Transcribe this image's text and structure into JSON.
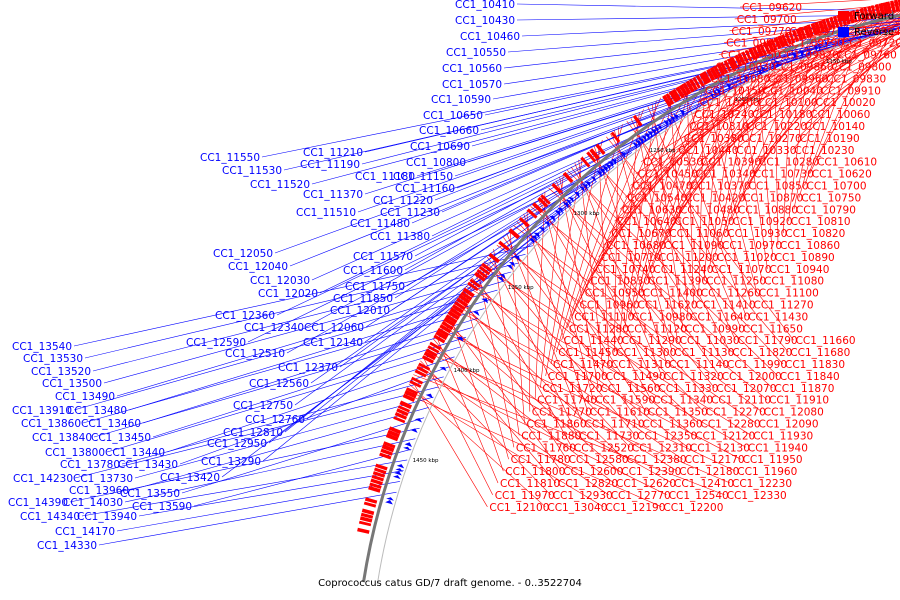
{
  "caption": "Coprococcus catus GD/7 draft genome. - 0..3522704",
  "legend": [
    {
      "label": "Forward",
      "color": "#ff0000"
    },
    {
      "label": "Reverse",
      "color": "#0000ff"
    }
  ],
  "colors": {
    "forward": "#ff0000",
    "reverse": "#0000ff",
    "backbone": "#777777"
  },
  "ticks": [
    "1050 kbp",
    "1100 kbp",
    "1150 kbp",
    "1200 kbp",
    "1250 kbp",
    "1300 kbp",
    "1350 kbp",
    "1400 kbp",
    "1450 kbp"
  ],
  "forward_labels": [
    "CC1_09620",
    "CC1_09700",
    "CC1_09770",
    "CC1_09710",
    "CC1_09640",
    "CC1_09850",
    "CC1_09790",
    "CC1_09720",
    "CC1_09950",
    "CC1_09820",
    "CC1_09760",
    "CC1_10030",
    "CC1_09860",
    "CC1_09800",
    "CC1_10080",
    "CC1_09960",
    "CC1_09830",
    "CC1_10150",
    "CC1_10040",
    "CC1_09910",
    "CC1_10200",
    "CC1_10100",
    "CC1_10020",
    "CC1_10240",
    "CC1_10180",
    "CC1_10060",
    "CC1_10310",
    "CC1_10220",
    "CC1_10140",
    "CC1_10380",
    "CC1_10270",
    "CC1_10190",
    "CC1_10440",
    "CC1_10330",
    "CC1_10230",
    "CC1_10530",
    "CC1_10390",
    "CC1_10280",
    "CC1_10610",
    "CC1_10450",
    "CC1_10340",
    "CC1_10730",
    "CC1_10620",
    "CC1_10470",
    "CC1_10370",
    "CC1_10850",
    "CC1_10700",
    "CC1_10540",
    "CC1_10420",
    "CC1_10870",
    "CC1_10750",
    "CC1_10630",
    "CC1_10480",
    "CC1_10880",
    "CC1_10790",
    "CC1_10640",
    "CC1_11050",
    "CC1_10920",
    "CC1_10810",
    "CC1_10670",
    "CC1_11060",
    "CC1_10930",
    "CC1_10820",
    "CC1_10680",
    "CC1_11090",
    "CC1_10970",
    "CC1_10860",
    "CC1_10710",
    "CC1_11200",
    "CC1_11020",
    "CC1_10890",
    "CC1_10740",
    "CC1_11240",
    "CC1_11070",
    "CC1_10940",
    "CC1_10830",
    "CC1_11390",
    "CC1_11250",
    "CC1_11080",
    "CC1_10950",
    "CC1_11400",
    "CC1_11260",
    "CC1_11100",
    "CC1_10960",
    "CC1_11620",
    "CC1_11410",
    "CC1_11270",
    "CC1_11110",
    "CC1_10980",
    "CC1_11640",
    "CC1_11430",
    "CC1_11280",
    "CC1_11120",
    "CC1_10990",
    "CC1_11650",
    "CC1_11440",
    "CC1_11290",
    "CC1_11030",
    "CC1_11790",
    "CC1_11660",
    "CC1_11450",
    "CC1_11300",
    "CC1_11130",
    "CC1_11820",
    "CC1_11680",
    "CC1_11470",
    "CC1_11310",
    "CC1_11140",
    "CC1_11990",
    "CC1_11830",
    "CC1_11700",
    "CC1_11490",
    "CC1_11320",
    "CC1_12000",
    "CC1_11840",
    "CC1_11720",
    "CC1_11560",
    "CC1_11330",
    "CC1_12070",
    "CC1_11870",
    "CC1_11740",
    "CC1_11590",
    "CC1_11340",
    "CC1_12110",
    "CC1_11910",
    "CC1_11770",
    "CC1_11610",
    "CC1_11350",
    "CC1_12270",
    "CC1_12080",
    "CC1_11860",
    "CC1_11710",
    "CC1_11360",
    "CC1_12280",
    "CC1_12090",
    "CC1_11880",
    "CC1_11730",
    "CC1_12350",
    "CC1_12120",
    "CC1_11930",
    "CC1_11760",
    "CC1_12520",
    "CC1_12310",
    "CC1_12130",
    "CC1_11940",
    "CC1_11780",
    "CC1_12580",
    "CC1_12380",
    "CC1_12170",
    "CC1_11950",
    "CC1_11800",
    "CC1_12600",
    "CC1_12390",
    "CC1_12180",
    "CC1_11960",
    "CC1_11810",
    "CC1_12820",
    "CC1_12620",
    "CC1_12410",
    "CC1_12230",
    "CC1_11970",
    "CC1_12930",
    "CC1_12770",
    "CC1_12540",
    "CC1_12330",
    "CC1_12100",
    "CC1_13040",
    "CC1_12190",
    "CC1_12200"
  ],
  "reverse_labels": [
    "CC1_10410",
    "CC1_10430",
    "CC1_10460",
    "CC1_10550",
    "CC1_10560",
    "CC1_10570",
    "CC1_10590",
    "CC1_10650",
    "CC1_10660",
    "CC1_10690",
    "CC1_10800",
    "CC1_11210",
    "CC1_11550",
    "CC1_11190",
    "CC1_11530",
    "CC1_11180",
    "CC1_11150",
    "CC1_11520",
    "CC1_11160",
    "CC1_11370",
    "CC1_11220",
    "CC1_11510",
    "CC1_11230",
    "CC1_11480",
    "CC1_11380",
    "CC1_12050",
    "CC1_11570",
    "CC1_12040",
    "CC1_11600",
    "CC1_12030",
    "CC1_11750",
    "CC1_12020",
    "CC1_11850",
    "CC1_12010",
    "CC1_12360",
    "CC1_12340",
    "CC1_12060",
    "CC1_12590",
    "CC1_12140",
    "CC1_12510",
    "CC1_12370",
    "CC1_12810",
    "CC1_12560",
    "CC1_12750",
    "CC1_12760",
    "CC1_12950",
    "CC1_13290",
    "CC1_13420",
    "CC1_13540",
    "CC1_13530",
    "CC1_13520",
    "CC1_13500",
    "CC1_13490",
    "CC1_13910",
    "CC1_13480",
    "CC1_13860",
    "CC1_13460",
    "CC1_13840",
    "CC1_13450",
    "CC1_13800",
    "CC1_13440",
    "CC1_13430",
    "CC1_13780",
    "CC1_14230",
    "CC1_13730",
    "CC1_13960",
    "CC1_13550",
    "CC1_14390",
    "CC1_14030",
    "CC1_13590",
    "CC1_14340",
    "CC1_13940",
    "CC1_14170",
    "CC1_14330"
  ]
}
